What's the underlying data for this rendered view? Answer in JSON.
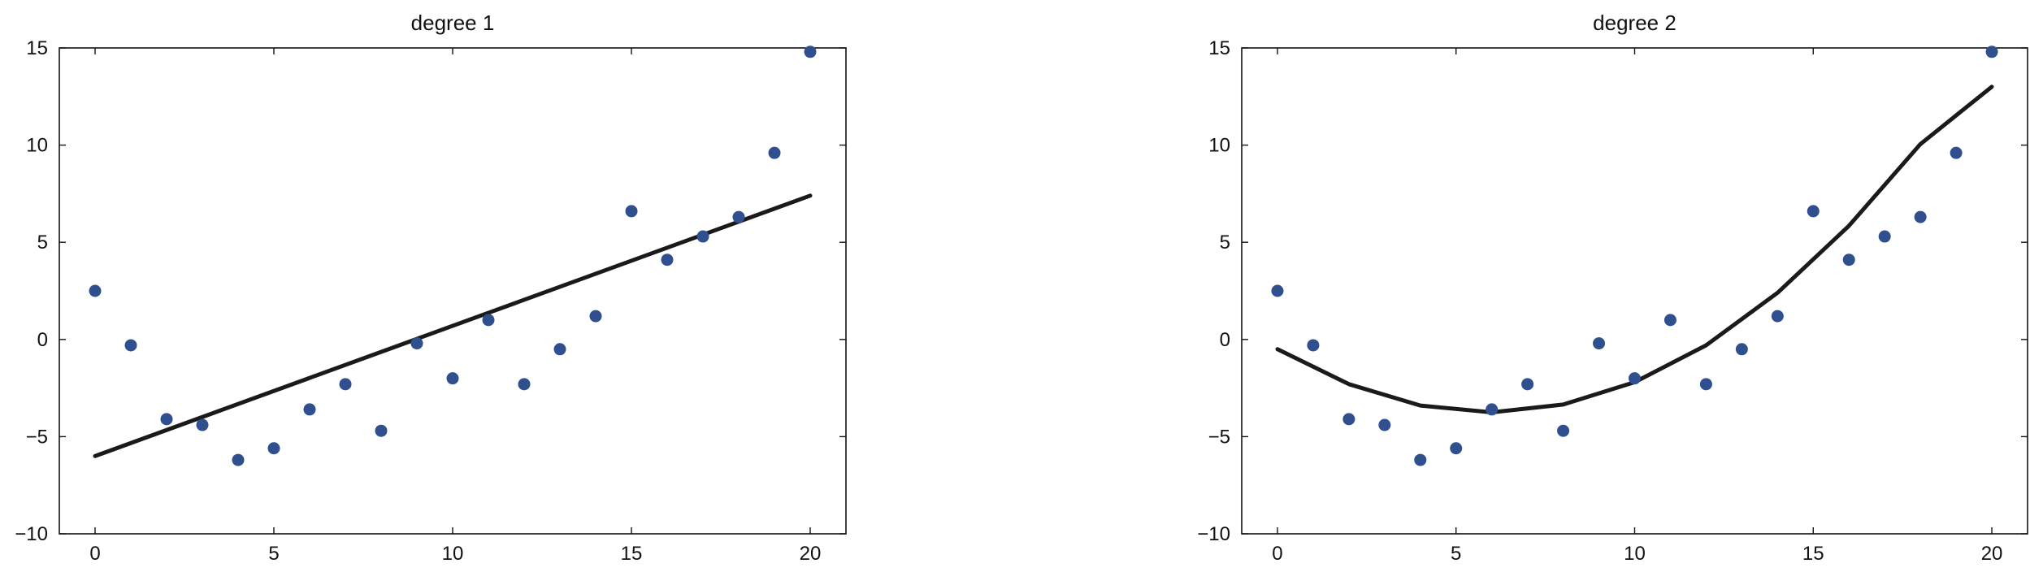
{
  "chart_data": [
    {
      "type": "scatter",
      "title": "degree 1",
      "xlabel": "",
      "ylabel": "",
      "xlim": [
        -1,
        21
      ],
      "ylim": [
        -10,
        15
      ],
      "xticks": [
        0,
        5,
        10,
        15,
        20
      ],
      "yticks": [
        -10,
        -5,
        0,
        5,
        10,
        15
      ],
      "grid": false,
      "x": [
        0,
        1,
        2,
        3,
        4,
        5,
        6,
        7,
        8,
        9,
        10,
        11,
        12,
        13,
        14,
        15,
        16,
        17,
        18,
        19,
        20
      ],
      "y": [
        2.5,
        -0.3,
        -4.1,
        -4.4,
        -6.2,
        -5.6,
        -3.6,
        -2.3,
        -4.7,
        -0.2,
        -2.0,
        1.0,
        -2.3,
        -0.5,
        1.2,
        6.6,
        4.1,
        5.3,
        6.3,
        9.6,
        14.8
      ],
      "fit": {
        "type": "line",
        "degree": 1,
        "x": [
          0,
          20
        ],
        "y": [
          -6.0,
          7.4
        ]
      },
      "colors": {
        "points": "#2f4f8f",
        "fit": "#1a1a1a"
      }
    },
    {
      "type": "scatter",
      "title": "degree 2",
      "xlabel": "",
      "ylabel": "",
      "xlim": [
        -1,
        21
      ],
      "ylim": [
        -10,
        15
      ],
      "xticks": [
        0,
        5,
        10,
        15,
        20
      ],
      "yticks": [
        -10,
        -5,
        0,
        5,
        10,
        15
      ],
      "grid": false,
      "x": [
        0,
        1,
        2,
        3,
        4,
        5,
        6,
        7,
        8,
        9,
        10,
        11,
        12,
        13,
        14,
        15,
        16,
        17,
        18,
        19,
        20
      ],
      "y": [
        2.5,
        -0.3,
        -4.1,
        -4.4,
        -6.2,
        -5.6,
        -3.6,
        -2.3,
        -4.7,
        -0.2,
        -2.0,
        1.0,
        -2.3,
        -0.5,
        1.2,
        6.6,
        4.1,
        5.3,
        6.3,
        9.6,
        14.8
      ],
      "fit": {
        "type": "line",
        "degree": 2,
        "x": [
          0,
          2,
          4,
          6,
          8,
          10,
          12,
          14,
          16,
          18,
          20
        ],
        "y": [
          -0.5,
          -2.3,
          -3.4,
          -3.75,
          -3.35,
          -2.2,
          -0.3,
          2.4,
          5.85,
          10.05,
          13.0
        ]
      },
      "colors": {
        "points": "#2f4f8f",
        "fit": "#1a1a1a"
      }
    }
  ]
}
